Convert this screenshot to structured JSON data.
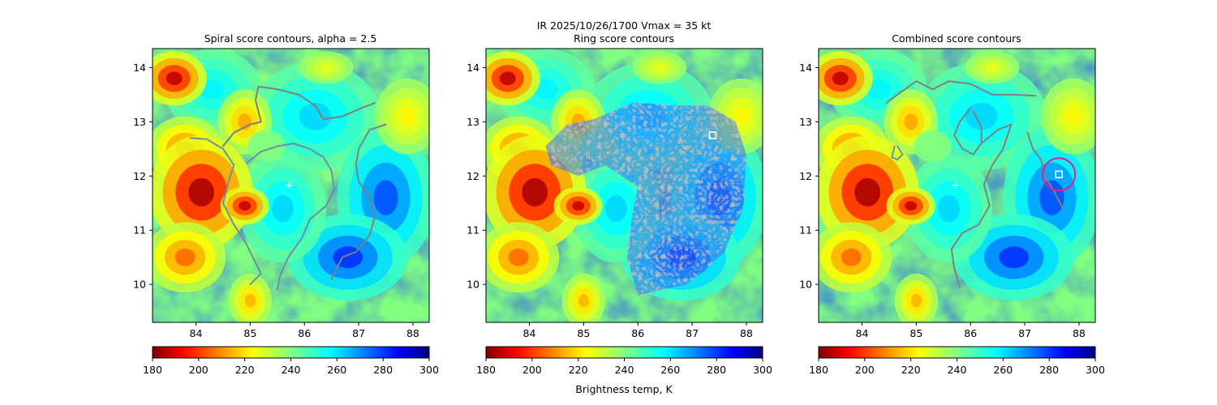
{
  "figure": {
    "suptitle_line1": "IR  2025/10/26/1700    Vmax = 35 kt",
    "colorbar_label": "Brightness temp, K"
  },
  "colors": {
    "contour": "#808080",
    "contour_alt": "#6f8ea0",
    "marker": "#ffffff",
    "circle": "#e0208c"
  },
  "chart_data": [
    {
      "type": "heatmap",
      "title": "Spiral score contours, alpha =  2.5",
      "xlim": [
        83.2,
        88.3
      ],
      "ylim": [
        9.3,
        14.35
      ],
      "xticks": [
        84,
        85,
        86,
        87,
        88
      ],
      "yticks": [
        10,
        11,
        12,
        13,
        14
      ],
      "xtick_labels": [
        "84",
        "85",
        "86",
        "87",
        "88"
      ],
      "ytick_labels": [
        "10",
        "11",
        "12",
        "13",
        "14"
      ],
      "colorbar": {
        "range": [
          180,
          300
        ],
        "ticks": [
          180,
          200,
          220,
          240,
          260,
          280,
          300
        ],
        "tick_labels": [
          "180",
          "200",
          "220",
          "240",
          "260",
          "280",
          "300"
        ],
        "colormap": "jet_r",
        "label": ""
      },
      "center_marker": {
        "lon": 85.72,
        "lat": 11.83
      },
      "contours": [
        {
          "name": "spiral-contour-west",
          "color_key": "contour_alt",
          "points": [
            [
              83.9,
              12.7
            ],
            [
              84.2,
              12.68
            ],
            [
              84.5,
              12.5
            ],
            [
              84.7,
              12.2
            ],
            [
              84.6,
              11.9
            ],
            [
              84.5,
              11.5
            ],
            [
              84.7,
              11.1
            ],
            [
              84.9,
              10.8
            ],
            [
              85.05,
              10.5
            ],
            [
              85.2,
              10.2
            ],
            [
              85.0,
              10.0
            ]
          ]
        },
        {
          "name": "spiral-contour-central",
          "color_key": "contour",
          "points": [
            [
              84.5,
              12.55
            ],
            [
              84.7,
              12.8
            ],
            [
              85.0,
              12.95
            ],
            [
              85.2,
              13.0
            ],
            [
              85.1,
              13.4
            ],
            [
              85.15,
              13.65
            ],
            [
              85.5,
              13.6
            ],
            [
              85.9,
              13.5
            ],
            [
              86.2,
              13.3
            ],
            [
              86.35,
              13.05
            ],
            [
              86.7,
              13.1
            ],
            [
              87.05,
              13.25
            ],
            [
              87.3,
              13.35
            ]
          ]
        },
        {
          "name": "spiral-contour-arc",
          "color_key": "contour_alt",
          "points": [
            [
              84.95,
              12.25
            ],
            [
              85.2,
              12.45
            ],
            [
              85.5,
              12.55
            ],
            [
              85.8,
              12.6
            ],
            [
              86.1,
              12.5
            ],
            [
              86.35,
              12.35
            ],
            [
              86.5,
              12.1
            ],
            [
              86.55,
              11.75
            ],
            [
              86.4,
              11.45
            ],
            [
              86.1,
              11.2
            ],
            [
              85.95,
              10.85
            ],
            [
              85.7,
              10.5
            ],
            [
              85.55,
              10.15
            ],
            [
              85.5,
              9.9
            ]
          ]
        },
        {
          "name": "spiral-contour-east",
          "color_key": "contour",
          "points": [
            [
              87.5,
              12.95
            ],
            [
              87.2,
              12.85
            ],
            [
              87.0,
              12.5
            ],
            [
              86.95,
              12.2
            ],
            [
              87.0,
              11.9
            ],
            [
              87.2,
              11.6
            ],
            [
              87.3,
              11.25
            ],
            [
              87.2,
              10.9
            ],
            [
              86.95,
              10.6
            ],
            [
              86.7,
              10.5
            ],
            [
              86.5,
              10.1
            ]
          ]
        }
      ]
    },
    {
      "type": "heatmap",
      "title": "Ring score contours",
      "xlim": [
        83.2,
        88.3
      ],
      "ylim": [
        9.3,
        14.35
      ],
      "xticks": [
        84,
        85,
        86,
        87,
        88
      ],
      "yticks": [
        10,
        11,
        12,
        13,
        14
      ],
      "xtick_labels": [
        "84",
        "85",
        "86",
        "87",
        "88"
      ],
      "ytick_labels": [
        "10",
        "11",
        "12",
        "13",
        "14"
      ],
      "colorbar": {
        "range": [
          180,
          300
        ],
        "ticks": [
          180,
          200,
          220,
          240,
          260,
          280,
          300
        ],
        "tick_labels": [
          "180",
          "200",
          "220",
          "240",
          "260",
          "280",
          "300"
        ],
        "colormap": "jet_r",
        "label": "Brightness temp, K"
      },
      "square_marker": {
        "lon": 87.38,
        "lat": 12.75
      },
      "ring_region": [
        [
          84.3,
          12.55
        ],
        [
          84.7,
          12.95
        ],
        [
          85.2,
          13.05
        ],
        [
          85.9,
          13.35
        ],
        [
          86.6,
          13.3
        ],
        [
          87.3,
          13.3
        ],
        [
          87.8,
          13.0
        ],
        [
          88.0,
          12.4
        ],
        [
          87.95,
          11.5
        ],
        [
          87.6,
          10.6
        ],
        [
          86.9,
          10.0
        ],
        [
          86.0,
          9.8
        ],
        [
          85.8,
          10.5
        ],
        [
          85.9,
          11.3
        ],
        [
          86.0,
          11.8
        ],
        [
          85.4,
          12.2
        ],
        [
          84.9,
          12.0
        ],
        [
          84.4,
          12.2
        ]
      ]
    },
    {
      "type": "heatmap",
      "title": "Combined score contours",
      "xlim": [
        83.2,
        88.3
      ],
      "ylim": [
        9.3,
        14.35
      ],
      "xticks": [
        84,
        85,
        86,
        87,
        88
      ],
      "yticks": [
        10,
        11,
        12,
        13,
        14
      ],
      "xtick_labels": [
        "84",
        "85",
        "86",
        "87",
        "88"
      ],
      "ytick_labels": [
        "10",
        "11",
        "12",
        "13",
        "14"
      ],
      "colorbar": {
        "range": [
          180,
          300
        ],
        "ticks": [
          180,
          200,
          220,
          240,
          260,
          280,
          300
        ],
        "tick_labels": [
          "180",
          "200",
          "220",
          "240",
          "260",
          "280",
          "300"
        ],
        "colormap": "jet_r",
        "label": ""
      },
      "center_marker": {
        "lon": 85.72,
        "lat": 11.83
      },
      "square_marker": {
        "lon": 87.63,
        "lat": 12.03
      },
      "circle": {
        "lon": 87.63,
        "lat": 12.03,
        "radius_deg": 0.3
      },
      "contours": [
        {
          "name": "combined-contour-north",
          "color_key": "contour",
          "points": [
            [
              84.45,
              13.35
            ],
            [
              84.65,
              13.5
            ],
            [
              85.0,
              13.75
            ],
            [
              85.3,
              13.6
            ],
            [
              85.6,
              13.75
            ],
            [
              86.0,
              13.7
            ],
            [
              86.4,
              13.5
            ],
            [
              86.8,
              13.5
            ],
            [
              87.2,
              13.48
            ]
          ]
        },
        {
          "name": "combined-contour-loop-left",
          "color_key": "contour_alt",
          "points": [
            [
              84.6,
              12.55
            ],
            [
              84.55,
              12.35
            ],
            [
              84.65,
              12.3
            ],
            [
              84.75,
              12.4
            ],
            [
              84.65,
              12.55
            ]
          ]
        },
        {
          "name": "combined-contour-loop-center",
          "color_key": "contour",
          "points": [
            [
              86.0,
              13.25
            ],
            [
              85.8,
              13.0
            ],
            [
              85.7,
              12.75
            ],
            [
              85.85,
              12.5
            ],
            [
              86.05,
              12.4
            ],
            [
              86.2,
              12.6
            ],
            [
              86.2,
              12.9
            ],
            [
              86.05,
              13.2
            ]
          ]
        },
        {
          "name": "combined-contour-arc",
          "color_key": "contour",
          "points": [
            [
              86.2,
              12.6
            ],
            [
              86.5,
              12.85
            ],
            [
              86.75,
              12.95
            ],
            [
              86.6,
              12.5
            ],
            [
              86.4,
              12.2
            ],
            [
              86.25,
              11.85
            ],
            [
              86.35,
              11.45
            ],
            [
              86.15,
              11.1
            ],
            [
              85.85,
              10.95
            ],
            [
              85.65,
              10.65
            ],
            [
              85.7,
              10.3
            ],
            [
              85.8,
              9.95
            ]
          ]
        },
        {
          "name": "combined-contour-east",
          "color_key": "contour",
          "points": [
            [
              87.05,
              12.8
            ],
            [
              87.15,
              12.5
            ],
            [
              87.3,
              12.3
            ],
            [
              87.4,
              11.95
            ],
            [
              87.55,
              11.7
            ],
            [
              87.7,
              11.4
            ]
          ]
        }
      ]
    }
  ]
}
